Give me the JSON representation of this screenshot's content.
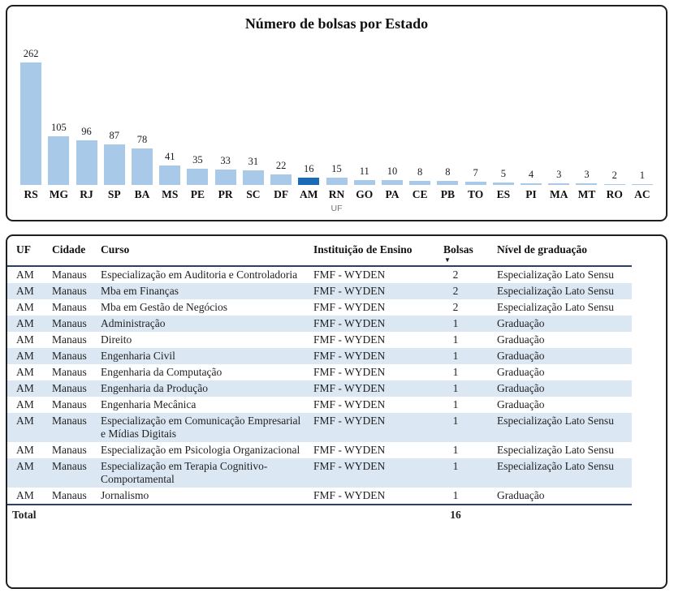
{
  "chart_data": {
    "type": "bar",
    "title": "Número de bolsas por Estado",
    "xlabel": "UF",
    "ylabel": "",
    "categories": [
      "RS",
      "MG",
      "RJ",
      "SP",
      "BA",
      "MS",
      "PE",
      "PR",
      "SC",
      "DF",
      "AM",
      "RN",
      "GO",
      "PA",
      "CE",
      "PB",
      "TO",
      "ES",
      "PI",
      "MA",
      "MT",
      "RO",
      "AC"
    ],
    "values": [
      262,
      105,
      96,
      87,
      78,
      41,
      35,
      33,
      31,
      22,
      16,
      15,
      11,
      10,
      8,
      8,
      7,
      5,
      4,
      3,
      3,
      2,
      1
    ],
    "highlighted_category": "AM",
    "bar_color": "#a9c9e8",
    "highlight_color": "#1a6ab8",
    "data_labels": true,
    "grid": false,
    "legend": false,
    "ylim": [
      0,
      275
    ]
  },
  "table": {
    "columns": [
      "UF",
      "Cidade",
      "Curso",
      "Instituição de Ensino",
      "Bolsas",
      "Nível de graduação"
    ],
    "column_keys": [
      "uf",
      "cidade",
      "curso",
      "instituicao",
      "bolsas",
      "nivel"
    ],
    "sorted_column": "Bolsas",
    "sort_direction": "desc",
    "sort_icon": "▼",
    "rows": [
      [
        "AM",
        "Manaus",
        "Especialização em Auditoria e Controladoria",
        "FMF - WYDEN",
        2,
        "Especialização Lato Sensu"
      ],
      [
        "AM",
        "Manaus",
        "Mba em Finanças",
        "FMF - WYDEN",
        2,
        "Especialização Lato Sensu"
      ],
      [
        "AM",
        "Manaus",
        "Mba em Gestão de Negócios",
        "FMF - WYDEN",
        2,
        "Especialização Lato Sensu"
      ],
      [
        "AM",
        "Manaus",
        "Administração",
        "FMF - WYDEN",
        1,
        "Graduação"
      ],
      [
        "AM",
        "Manaus",
        "Direito",
        "FMF - WYDEN",
        1,
        "Graduação"
      ],
      [
        "AM",
        "Manaus",
        "Engenharia Civil",
        "FMF - WYDEN",
        1,
        "Graduação"
      ],
      [
        "AM",
        "Manaus",
        "Engenharia da Computação",
        "FMF - WYDEN",
        1,
        "Graduação"
      ],
      [
        "AM",
        "Manaus",
        "Engenharia da Produção",
        "FMF - WYDEN",
        1,
        "Graduação"
      ],
      [
        "AM",
        "Manaus",
        "Engenharia Mecânica",
        "FMF - WYDEN",
        1,
        "Graduação"
      ],
      [
        "AM",
        "Manaus",
        "Especialização em Comunicação Empresarial e Mídias Digitais",
        "FMF - WYDEN",
        1,
        "Especialização Lato Sensu"
      ],
      [
        "AM",
        "Manaus",
        "Especialização em Psicologia Organizacional",
        "FMF - WYDEN",
        1,
        "Especialização Lato Sensu"
      ],
      [
        "AM",
        "Manaus",
        "Especialização em Terapia Cognitivo-Comportamental",
        "FMF - WYDEN",
        1,
        "Especialização Lato Sensu"
      ],
      [
        "AM",
        "Manaus",
        "Jornalismo",
        "FMF - WYDEN",
        1,
        "Graduação"
      ]
    ],
    "total_label": "Total",
    "total_value": "16",
    "stripe_color": "#dbe8f4",
    "rule_color": "#2f3d6e"
  }
}
